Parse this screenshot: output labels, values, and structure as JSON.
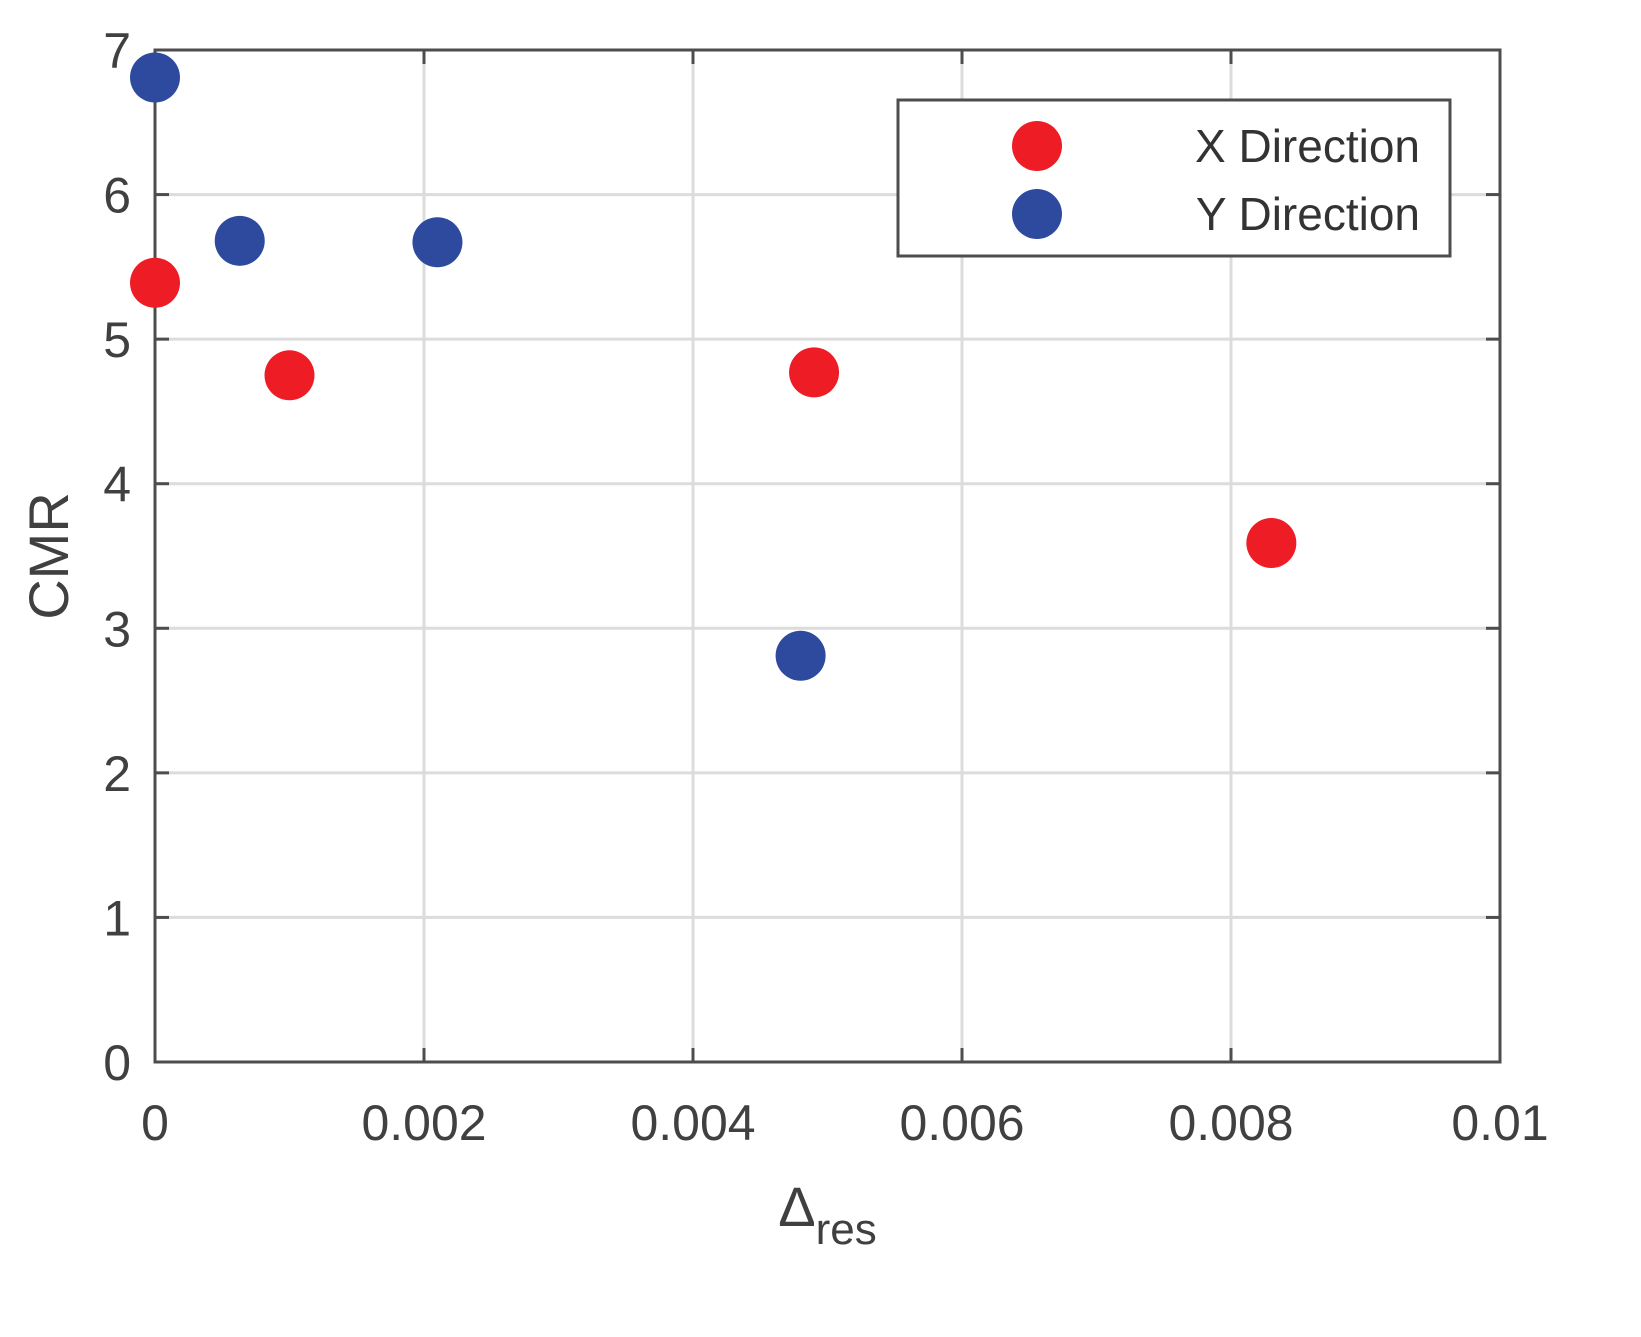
{
  "chart_data": {
    "type": "scatter",
    "title": "",
    "xlabel": {
      "main": "Δ",
      "subscript": "res"
    },
    "ylabel": "CMR",
    "xlim": [
      0,
      0.01
    ],
    "ylim": [
      0,
      7
    ],
    "x_ticks": [
      0,
      0.002,
      0.004,
      0.006,
      0.008,
      0.01
    ],
    "x_tick_labels": [
      "0",
      "0.002",
      "0.004",
      "0.006",
      "0.008",
      "0.01"
    ],
    "y_ticks": [
      0,
      1,
      2,
      3,
      4,
      5,
      6,
      7
    ],
    "y_tick_labels": [
      "0",
      "1",
      "2",
      "3",
      "4",
      "5",
      "6",
      "7"
    ],
    "grid": true,
    "legend_position": "top-right",
    "series": [
      {
        "name": "X Direction",
        "color": "#ee1c25",
        "points": [
          {
            "x": 0.0,
            "y": 5.39
          },
          {
            "x": 0.001,
            "y": 4.75
          },
          {
            "x": 0.0049,
            "y": 4.77
          },
          {
            "x": 0.0083,
            "y": 3.59
          }
        ]
      },
      {
        "name": "Y Direction",
        "color": "#2e4a9e",
        "points": [
          {
            "x": 0.0,
            "y": 6.81
          },
          {
            "x": 0.00063,
            "y": 5.68
          },
          {
            "x": 0.0021,
            "y": 5.67
          },
          {
            "x": 0.0048,
            "y": 2.81
          }
        ]
      }
    ]
  }
}
